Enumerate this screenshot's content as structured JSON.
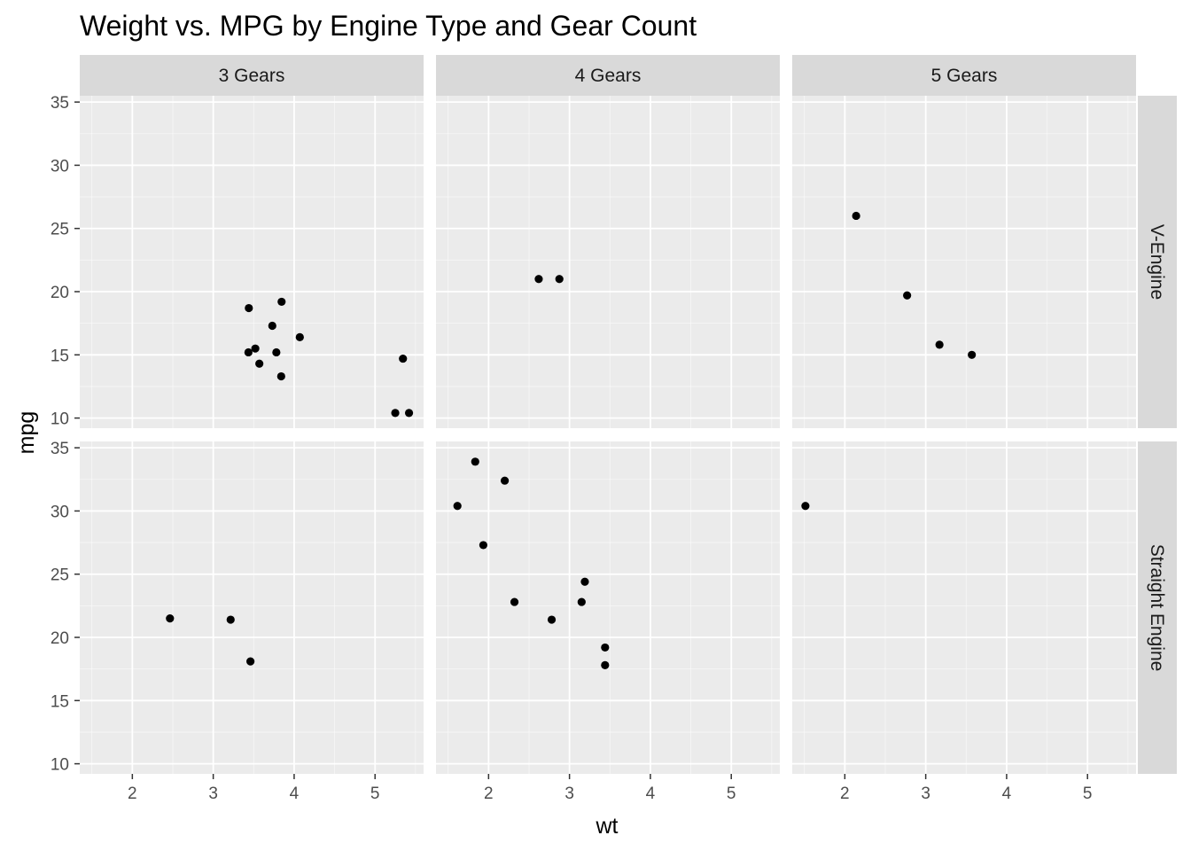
{
  "chart_data": {
    "type": "scatter",
    "title": "Weight vs. MPG by Engine Type and Gear Count",
    "xlabel": "wt",
    "ylabel": "mpg",
    "xlim": [
      1.35,
      5.6
    ],
    "ylim": [
      9.2,
      35.5
    ],
    "x_ticks": [
      2,
      3,
      4,
      5
    ],
    "y_ticks": [
      10,
      15,
      20,
      25,
      30,
      35
    ],
    "grid": true,
    "facet_columns": [
      "3 Gears",
      "4 Gears",
      "5 Gears"
    ],
    "facet_rows": [
      "V-Engine",
      "Straight Engine"
    ],
    "panels": [
      {
        "row": "V-Engine",
        "column": "3 Gears",
        "points": [
          {
            "x": 3.44,
            "y": 18.7
          },
          {
            "x": 3.57,
            "y": 14.3
          },
          {
            "x": 4.07,
            "y": 16.4
          },
          {
            "x": 3.73,
            "y": 17.3
          },
          {
            "x": 3.78,
            "y": 15.2
          },
          {
            "x": 5.25,
            "y": 10.4
          },
          {
            "x": 5.42,
            "y": 10.4
          },
          {
            "x": 5.345,
            "y": 14.7
          },
          {
            "x": 3.52,
            "y": 15.5
          },
          {
            "x": 3.435,
            "y": 15.2
          },
          {
            "x": 3.84,
            "y": 13.3
          },
          {
            "x": 3.845,
            "y": 19.2
          }
        ]
      },
      {
        "row": "V-Engine",
        "column": "4 Gears",
        "points": [
          {
            "x": 2.62,
            "y": 21.0
          },
          {
            "x": 2.875,
            "y": 21.0
          }
        ]
      },
      {
        "row": "V-Engine",
        "column": "5 Gears",
        "points": [
          {
            "x": 2.14,
            "y": 26.0
          },
          {
            "x": 3.17,
            "y": 15.8
          },
          {
            "x": 2.77,
            "y": 19.7
          },
          {
            "x": 3.57,
            "y": 15.0
          }
        ]
      },
      {
        "row": "Straight Engine",
        "column": "3 Gears",
        "points": [
          {
            "x": 3.215,
            "y": 21.4
          },
          {
            "x": 3.46,
            "y": 18.1
          },
          {
            "x": 2.465,
            "y": 21.5
          }
        ]
      },
      {
        "row": "Straight Engine",
        "column": "4 Gears",
        "points": [
          {
            "x": 2.32,
            "y": 22.8
          },
          {
            "x": 3.19,
            "y": 24.4
          },
          {
            "x": 3.15,
            "y": 22.8
          },
          {
            "x": 3.44,
            "y": 19.2
          },
          {
            "x": 3.44,
            "y": 17.8
          },
          {
            "x": 2.2,
            "y": 32.4
          },
          {
            "x": 1.615,
            "y": 30.4
          },
          {
            "x": 1.835,
            "y": 33.9
          },
          {
            "x": 1.935,
            "y": 27.3
          },
          {
            "x": 2.78,
            "y": 21.4
          }
        ]
      },
      {
        "row": "Straight Engine",
        "column": "5 Gears",
        "points": [
          {
            "x": 1.513,
            "y": 30.4
          }
        ]
      }
    ]
  },
  "colors": {
    "panel_background": "#ebebeb",
    "grid_major": "#ffffff",
    "strip_background": "#d9d9d9",
    "point": "#000000",
    "tick": "#333333"
  }
}
